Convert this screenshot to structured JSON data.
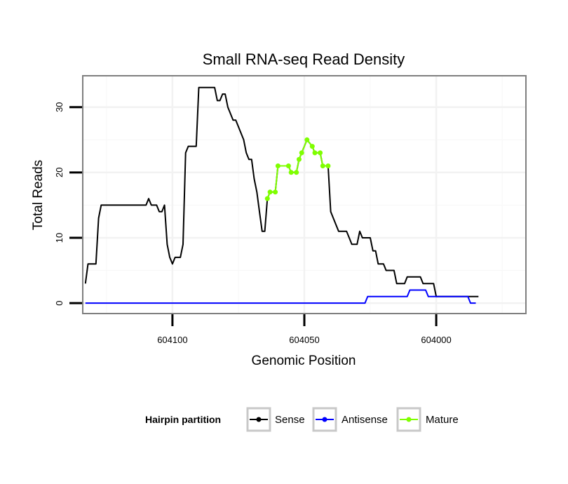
{
  "chart_data": {
    "type": "line",
    "title": "Small RNA-seq Read Density",
    "xlabel": "Genomic Position",
    "ylabel": "Total Reads",
    "xlim": [
      604134,
      603966
    ],
    "ylim": [
      -1.6,
      34.8
    ],
    "x_ticks": [
      604100,
      604050,
      604000
    ],
    "x_tick_labels": [
      "604100",
      "604050",
      "604000"
    ],
    "y_ticks": [
      0,
      10,
      20,
      30
    ],
    "y_tick_labels": [
      "0",
      "10",
      "20",
      "30"
    ],
    "x_reversed": true,
    "grid": true,
    "legend": {
      "title": "Hairpin partition",
      "position": "bottom",
      "entries": [
        "Sense",
        "Antisense",
        "Mature"
      ]
    },
    "series": [
      {
        "name": "Sense",
        "color": "#000000",
        "points": [
          [
            604133,
            3
          ],
          [
            604132,
            6
          ],
          [
            604129,
            6
          ],
          [
            604128,
            13
          ],
          [
            604127,
            15
          ],
          [
            604110,
            15
          ],
          [
            604109,
            16
          ],
          [
            604108,
            15
          ],
          [
            604106,
            15
          ],
          [
            604105,
            14
          ],
          [
            604104,
            14
          ],
          [
            604103,
            15
          ],
          [
            604102,
            9
          ],
          [
            604101,
            7
          ],
          [
            604100,
            6
          ],
          [
            604099,
            7
          ],
          [
            604097,
            7
          ],
          [
            604096,
            9
          ],
          [
            604095,
            23
          ],
          [
            604094,
            24
          ],
          [
            604091,
            24
          ],
          [
            604090,
            33
          ],
          [
            604084,
            33
          ],
          [
            604083,
            31
          ],
          [
            604082,
            31
          ],
          [
            604081,
            32
          ],
          [
            604080,
            32
          ],
          [
            604079,
            30
          ],
          [
            604077,
            28
          ],
          [
            604076,
            28
          ],
          [
            604073,
            25
          ],
          [
            604072,
            23
          ],
          [
            604071,
            22
          ],
          [
            604070,
            22
          ],
          [
            604069,
            19
          ],
          [
            604068,
            17
          ],
          [
            604067,
            14
          ],
          [
            604066,
            11
          ],
          [
            604065,
            11
          ],
          [
            604064,
            16
          ],
          [
            604063,
            17
          ],
          [
            604061,
            17
          ],
          [
            604060,
            21
          ],
          [
            604056,
            21
          ],
          [
            604055,
            20
          ],
          [
            604053,
            20
          ],
          [
            604052,
            22
          ],
          [
            604051,
            23
          ],
          [
            604049,
            25
          ],
          [
            604047,
            24
          ],
          [
            604046,
            23
          ],
          [
            604044,
            23
          ],
          [
            604043,
            21
          ],
          [
            604041,
            21
          ],
          [
            604040,
            14
          ],
          [
            604037,
            11
          ],
          [
            604034,
            11
          ],
          [
            604033,
            10
          ],
          [
            604032,
            9
          ],
          [
            604030,
            9
          ],
          [
            604029,
            11
          ],
          [
            604028,
            10
          ],
          [
            604025,
            10
          ],
          [
            604024,
            8
          ],
          [
            604023,
            8
          ],
          [
            604022,
            6
          ],
          [
            604020,
            6
          ],
          [
            604019,
            5
          ],
          [
            604016,
            5
          ],
          [
            604015,
            3
          ],
          [
            604012,
            3
          ],
          [
            604011,
            4
          ],
          [
            604006,
            4
          ],
          [
            604005,
            3
          ],
          [
            604001,
            3
          ],
          [
            604000,
            1
          ],
          [
            603996,
            1
          ],
          [
            603994,
            1
          ],
          [
            603984,
            1
          ]
        ]
      },
      {
        "name": "Antisense",
        "color": "#0000ff",
        "points": [
          [
            604133,
            0
          ],
          [
            604027,
            0
          ],
          [
            604026,
            1
          ],
          [
            604011,
            1
          ],
          [
            604010,
            2
          ],
          [
            604004,
            2
          ],
          [
            604003,
            1
          ],
          [
            603988,
            1
          ],
          [
            603987,
            0
          ],
          [
            603985,
            0
          ]
        ]
      },
      {
        "name": "Mature",
        "color": "#7fff00",
        "points": [
          [
            604064,
            16
          ],
          [
            604063,
            17
          ],
          [
            604061,
            17
          ],
          [
            604060,
            21
          ],
          [
            604056,
            21
          ],
          [
            604055,
            20
          ],
          [
            604053,
            20
          ],
          [
            604052,
            22
          ],
          [
            604051,
            23
          ],
          [
            604049,
            25
          ],
          [
            604047,
            24
          ],
          [
            604046,
            23
          ],
          [
            604044,
            23
          ],
          [
            604043,
            21
          ],
          [
            604041,
            21
          ]
        ]
      }
    ]
  }
}
